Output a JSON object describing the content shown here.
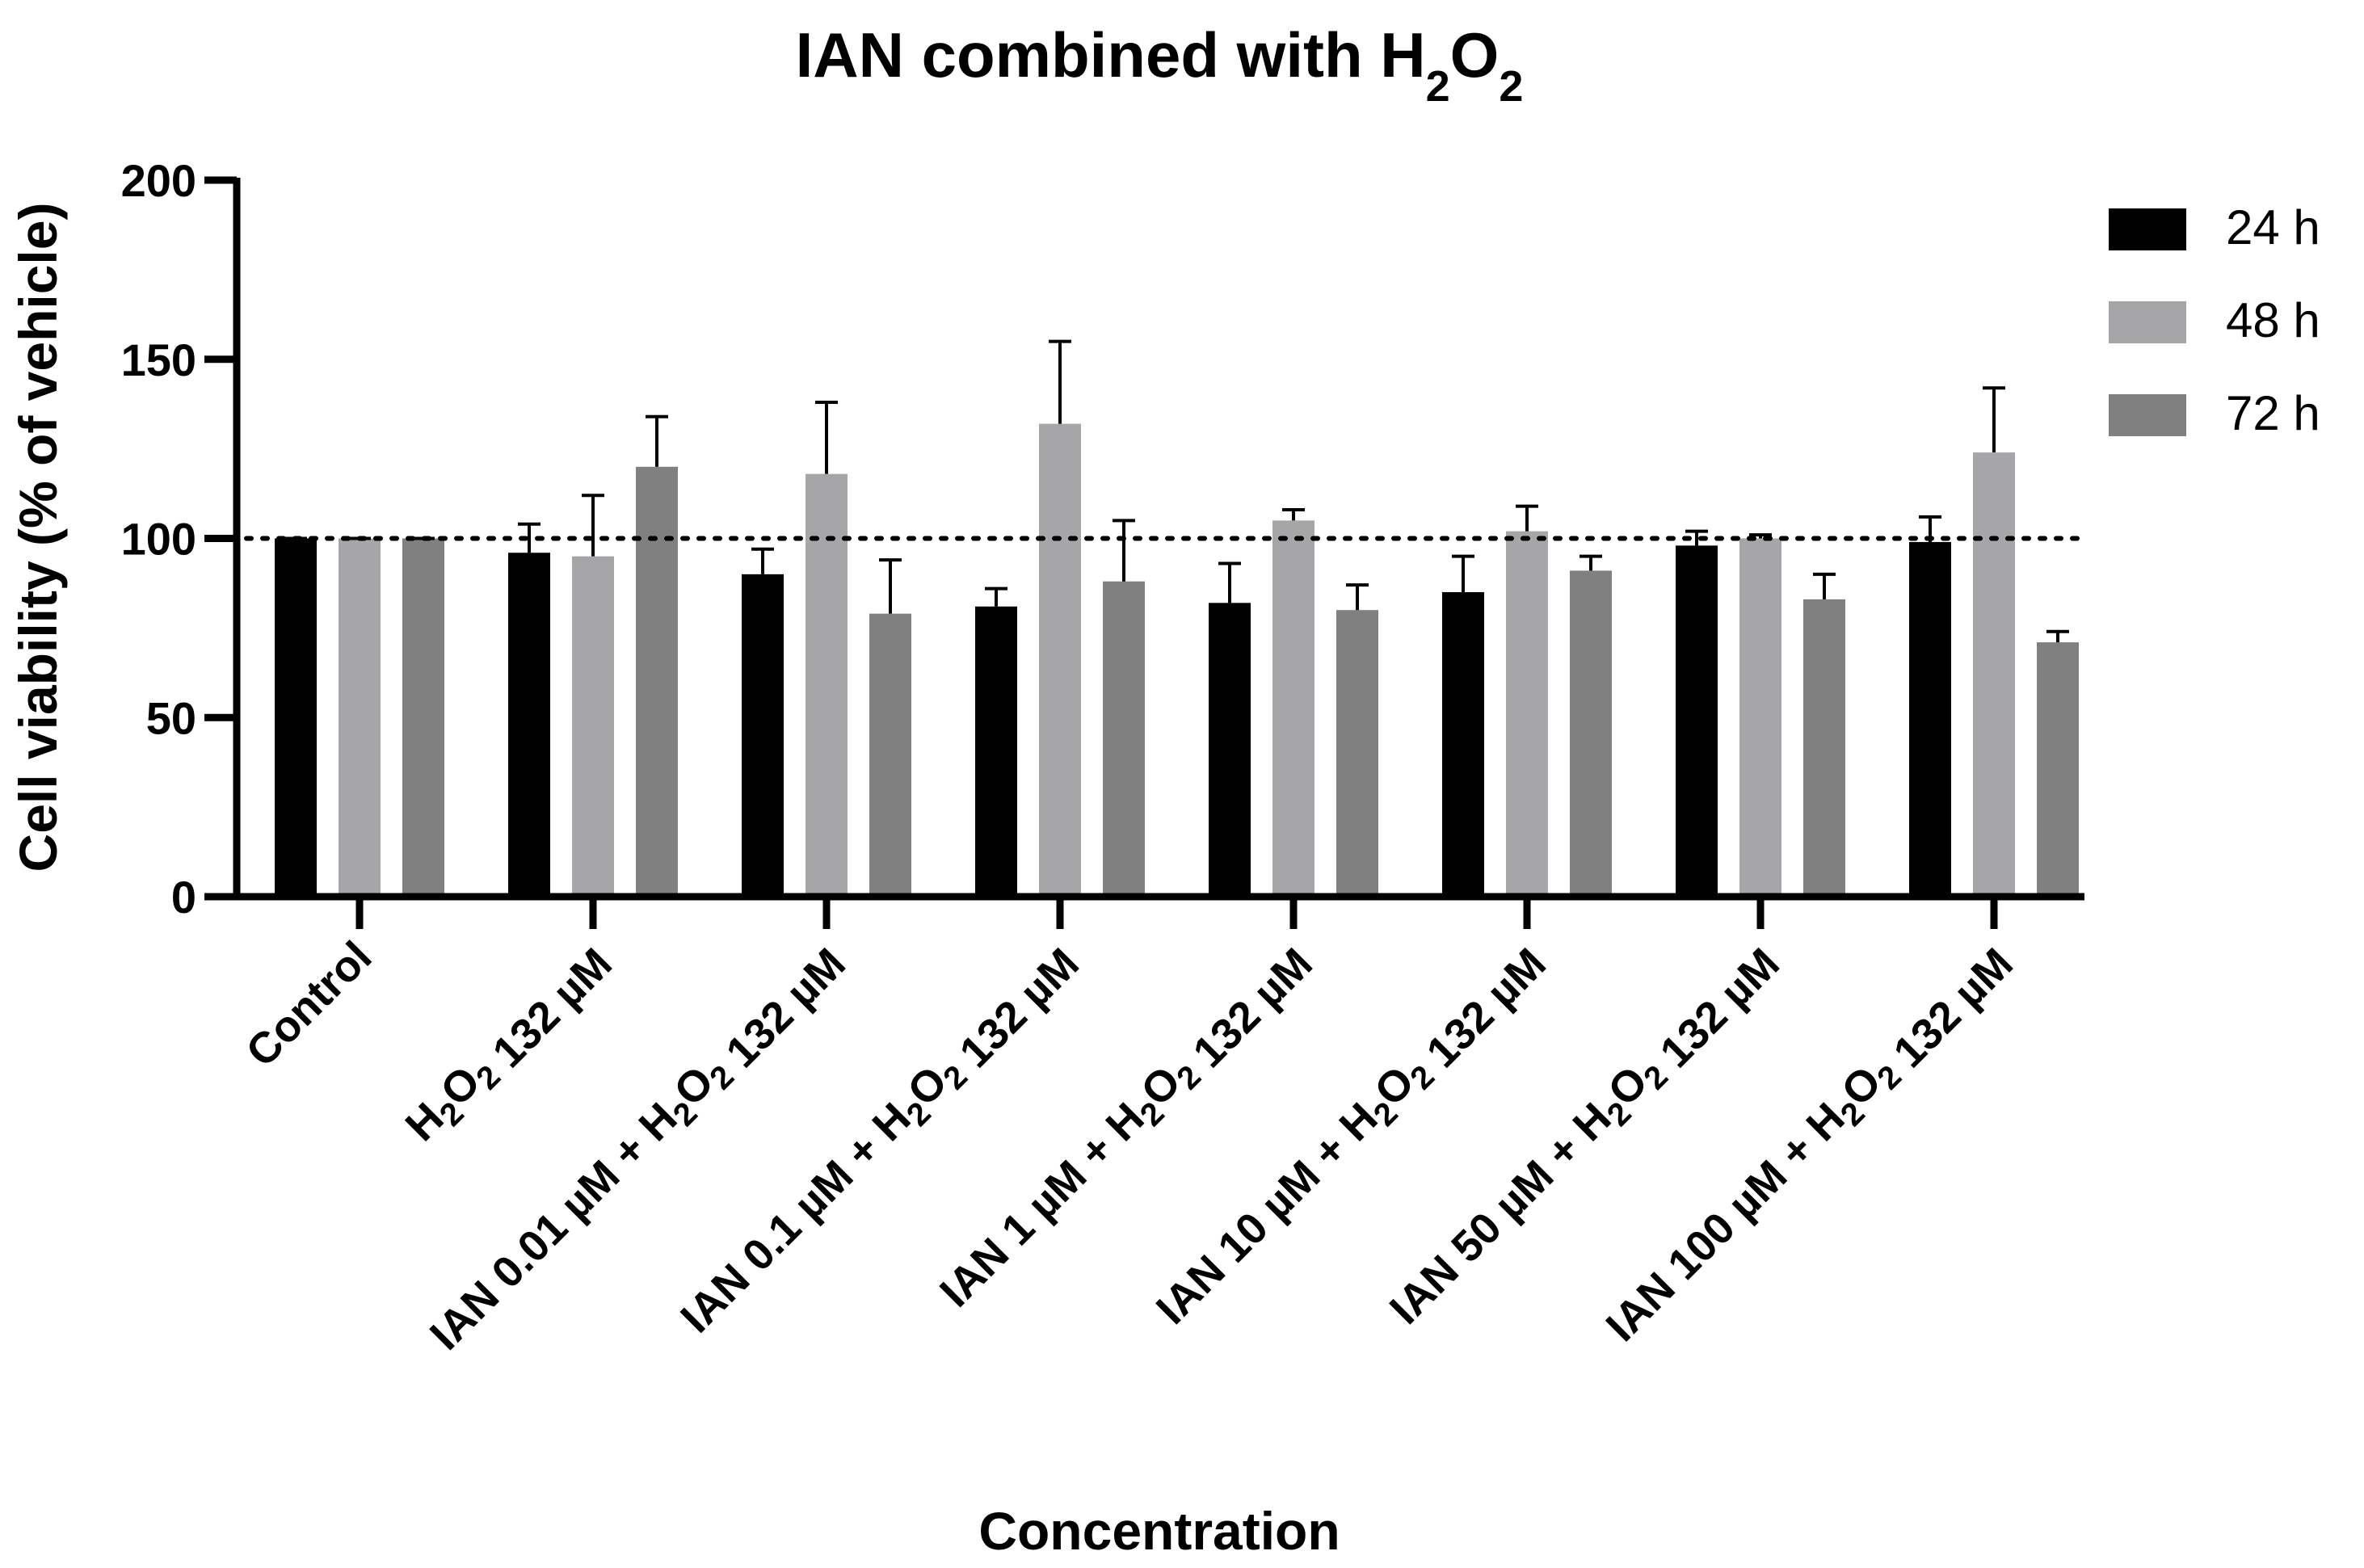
{
  "chart_data": {
    "type": "bar",
    "title": "IAN combined with H2O2",
    "title_parts": [
      {
        "text": "IAN combined with H",
        "sub": false
      },
      {
        "text": "2",
        "sub": true
      },
      {
        "text": "O",
        "sub": false
      },
      {
        "text": "2",
        "sub": true
      }
    ],
    "xlabel": "Concentration",
    "ylabel": "Cell viability  (% of vehicle)",
    "ylim": [
      0,
      200
    ],
    "yticks": [
      0,
      50,
      100,
      150,
      200
    ],
    "reference_line": 100,
    "legend_position": "top-right",
    "categories": [
      "Control",
      "H2O2 132 µM",
      "IAN 0.01 µM + H2O2 132 µM",
      "IAN 0.1 µM + H2O2 132 µM",
      "IAN 1 µM + H2O2 132 µM",
      "IAN 10 µM + H2O2 132 µM",
      "IAN 50 µM + H2O2 132 µM",
      "IAN 100 µM + H2O2 132 µM"
    ],
    "series": [
      {
        "name": "24 h",
        "color": "#000000",
        "values": [
          100,
          96,
          90,
          81,
          82,
          85,
          98,
          99
        ],
        "errors": [
          0,
          8,
          7,
          5,
          11,
          10,
          4,
          7
        ]
      },
      {
        "name": "48 h",
        "color": "#a6a6a8",
        "values": [
          100,
          95,
          118,
          132,
          105,
          102,
          100,
          124
        ],
        "errors": [
          0,
          17,
          20,
          23,
          3,
          7,
          1,
          18
        ]
      },
      {
        "name": "72 h",
        "color": "#808080",
        "values": [
          100,
          120,
          79,
          88,
          80,
          91,
          83,
          71
        ],
        "errors": [
          0,
          14,
          15,
          17,
          7,
          4,
          7,
          3
        ]
      }
    ]
  }
}
